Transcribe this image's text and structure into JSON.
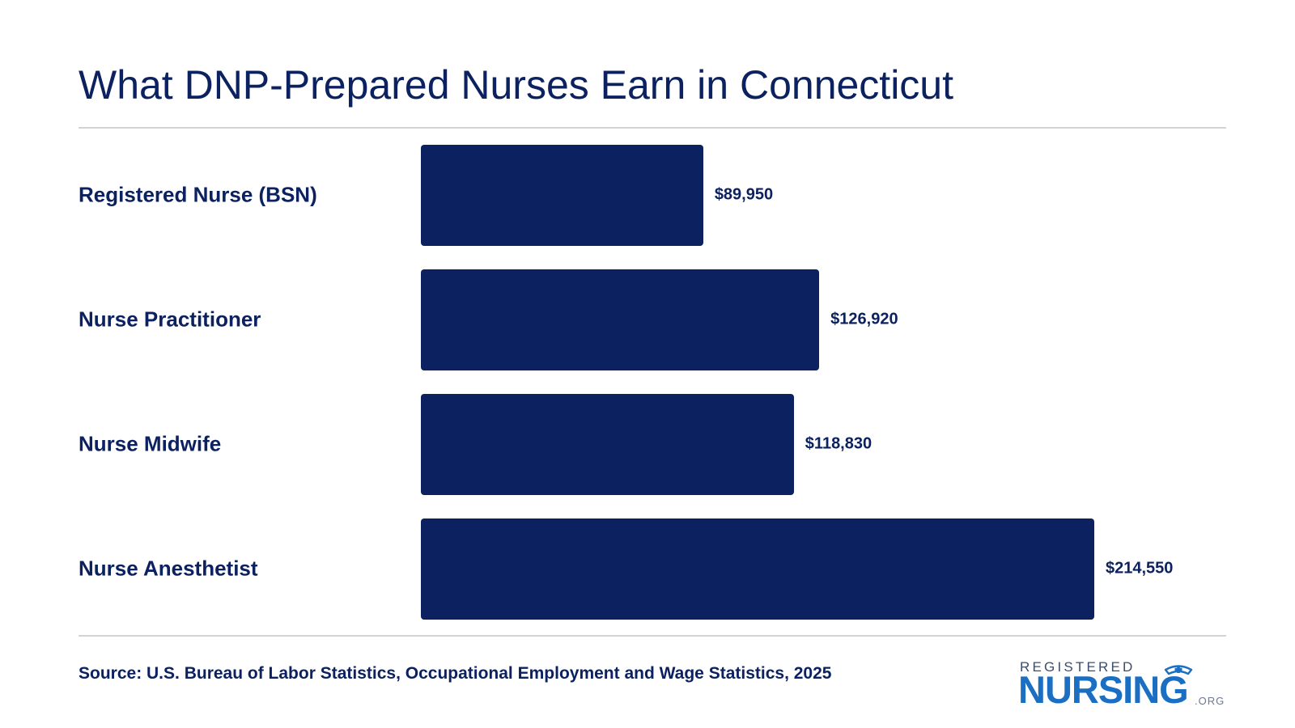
{
  "chart_data": {
    "type": "bar",
    "orientation": "horizontal",
    "title": "What DNP-Prepared Nurses Earn in Connecticut",
    "categories": [
      "Registered Nurse (BSN)",
      "Nurse Practitioner",
      "Nurse Midwife",
      "Nurse Anesthetist"
    ],
    "values": [
      89950,
      126920,
      118830,
      214550
    ],
    "value_labels": [
      "$89,950",
      "$126,920",
      "$118,830",
      "$214,550"
    ],
    "xlim": [
      0,
      214550
    ],
    "grid": false,
    "legend": "none",
    "bar_color": "#0c2260"
  },
  "source": "Source: U.S. Bureau of Labor Statistics, Occupational Employment and Wage Statistics, 2025",
  "logo": {
    "top_text": "REGISTERED",
    "main_text": "NURSING",
    "suffix": ".ORG",
    "icon": "nurse-cap-icon"
  },
  "colors": {
    "text": "#0c2260",
    "logo_blue": "#1b6fc2"
  }
}
